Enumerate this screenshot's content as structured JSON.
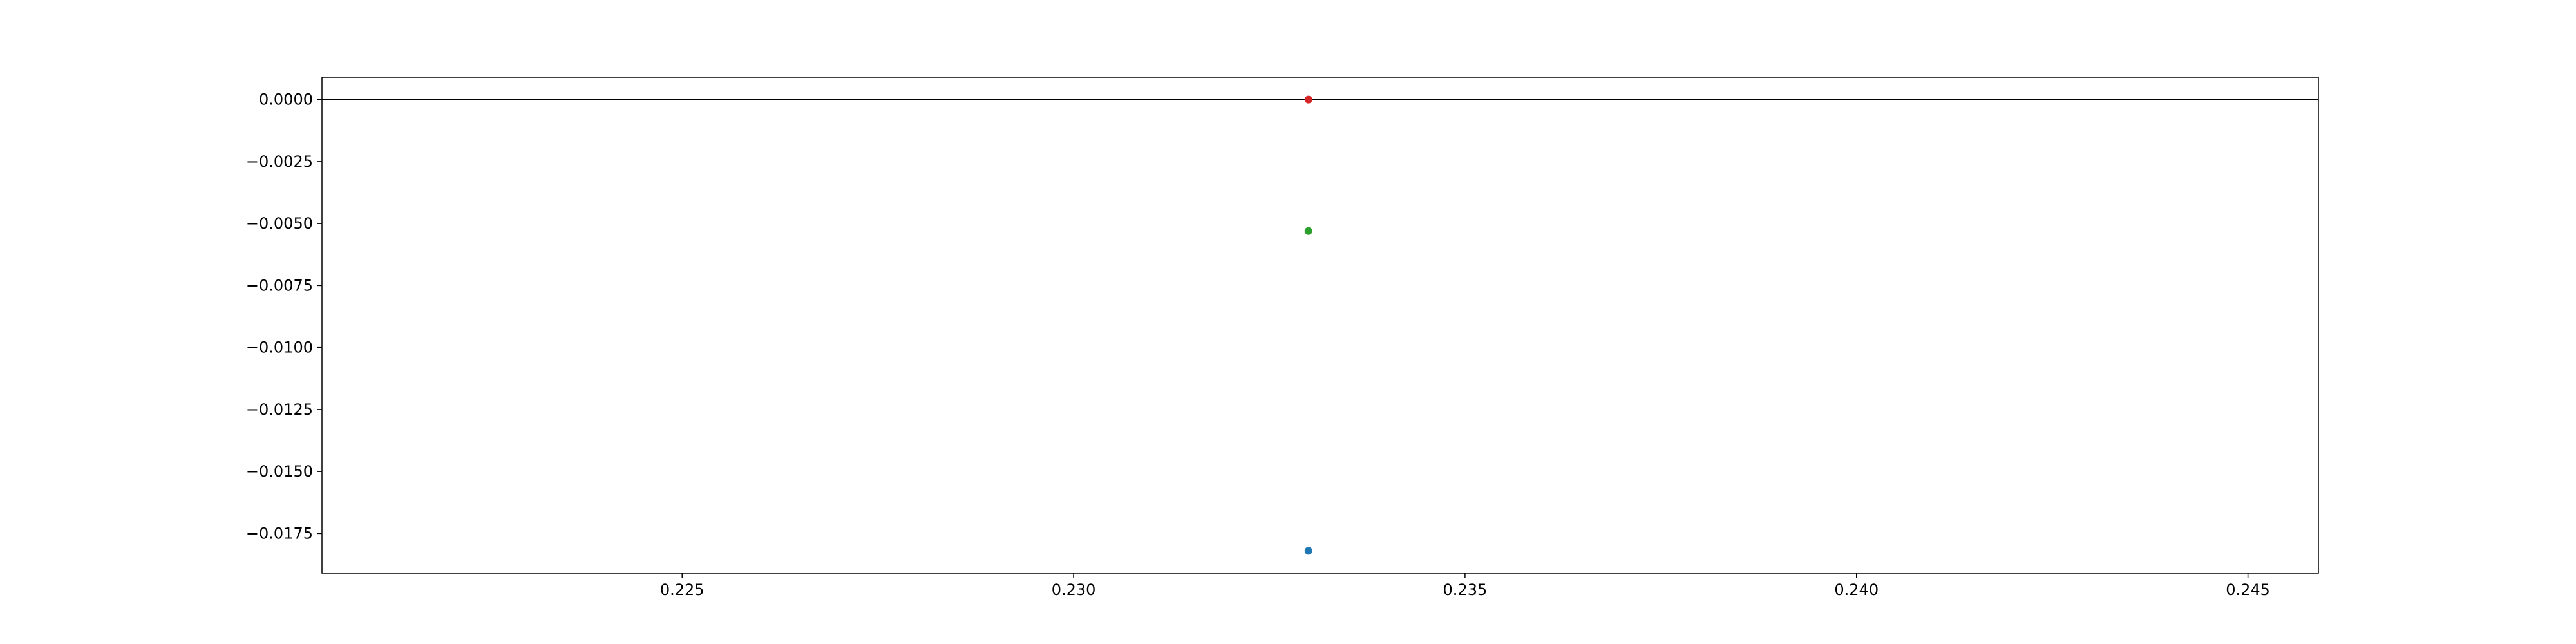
{
  "chart_data": {
    "type": "scatter",
    "x": [
      0.233,
      0.233,
      0.233
    ],
    "series": [
      {
        "x": [
          0.233
        ],
        "y": [
          0.0
        ],
        "color": "#d62728"
      },
      {
        "x": [
          0.233
        ],
        "y": [
          -0.0053
        ],
        "color": "#2ca02c"
      },
      {
        "x": [
          0.233
        ],
        "y": [
          -0.0182
        ],
        "color": "#1f77b4"
      }
    ],
    "xlim": [
      0.2204,
      0.2459
    ],
    "ylim": [
      -0.0191,
      0.0009
    ],
    "xticks": [
      0.225,
      0.23,
      0.235,
      0.24,
      0.245
    ],
    "xtick_labels": [
      "0.225",
      "0.230",
      "0.235",
      "0.240",
      "0.245"
    ],
    "yticks": [
      0.0,
      -0.0025,
      -0.005,
      -0.0075,
      -0.01,
      -0.0125,
      -0.015,
      -0.0175
    ],
    "ytick_labels": [
      "0.0000",
      "−0.0025",
      "−0.0050",
      "−0.0075",
      "−0.0100",
      "−0.0125",
      "−0.0150",
      "−0.0175"
    ],
    "reference_line": {
      "y": 0.0,
      "color": "#000000"
    },
    "title": "",
    "xlabel": "",
    "ylabel": "",
    "grid": false,
    "legend": false
  }
}
